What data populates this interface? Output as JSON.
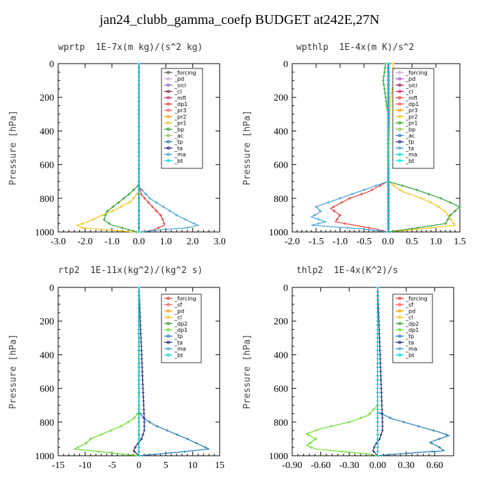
{
  "title": "jan24_clubb_gamma_coefp  BUDGET at242E,27N",
  "chart_data": [
    {
      "type": "line",
      "title": "wprtp  1E-7x(m kg)/(s^2 kg)",
      "ylabel": "Pressure [hPa]",
      "xlim": [
        -3.0,
        3.0
      ],
      "ylim": [
        0,
        1000
      ],
      "y_inverted": true,
      "xticks": [
        "-3.0",
        "-2.0",
        "-1.0",
        "0.0",
        "1.0",
        "2.0",
        "3.0"
      ],
      "xtick_values": [
        -3,
        -2,
        -1,
        0,
        1,
        2,
        3
      ],
      "yticks": [
        "0",
        "200",
        "400",
        "600",
        "800",
        "1000"
      ],
      "legend_position": "top-right",
      "series": [
        {
          "name": "_forcing",
          "color": "#555555",
          "y": [
            0,
            1000
          ],
          "x": [
            0,
            0
          ]
        },
        {
          "name": "_pd",
          "color": "#c9a0dc",
          "y": [
            0,
            1000
          ],
          "x": [
            0,
            0
          ]
        },
        {
          "name": "_sicl",
          "color": "#9b59b6",
          "y": [
            0,
            1000
          ],
          "x": [
            0,
            0
          ]
        },
        {
          "name": "_cl",
          "color": "#8e1b4a",
          "y": [
            0,
            1000
          ],
          "x": [
            0,
            0
          ]
        },
        {
          "name": "_mfl",
          "color": "#d81b60",
          "y": [
            0,
            1000
          ],
          "x": [
            0,
            0
          ]
        },
        {
          "name": "_dp1",
          "color": "#e53935",
          "y": [
            0,
            720,
            780,
            850,
            900,
            930,
            960,
            990,
            1000
          ],
          "x": [
            0,
            0,
            0.1,
            0.5,
            0.8,
            0.9,
            0.95,
            0.5,
            0.1
          ]
        },
        {
          "name": "_pr3",
          "color": "#ff5252",
          "y": [
            0,
            1000
          ],
          "x": [
            0,
            0
          ]
        },
        {
          "name": "_pr2",
          "color": "#ff9800",
          "y": [
            0,
            1000
          ],
          "x": [
            0,
            0
          ]
        },
        {
          "name": "_pr1",
          "color": "#f4c20d",
          "y": [
            0,
            760,
            820,
            870,
            910,
            940,
            960,
            975,
            990,
            1000
          ],
          "x": [
            0,
            0,
            -0.3,
            -0.9,
            -1.5,
            -1.9,
            -2.3,
            -2.1,
            -1.0,
            -0.2
          ]
        },
        {
          "name": "_bp",
          "color": "#2e9e2e",
          "y": [
            0,
            720,
            780,
            830,
            880,
            930,
            960,
            980,
            1000
          ],
          "x": [
            0,
            0,
            -0.4,
            -0.8,
            -1.2,
            -1.3,
            -1.0,
            -0.5,
            -0.1
          ]
        },
        {
          "name": "_ac",
          "color": "#8bc34a",
          "y": [
            0,
            1000
          ],
          "x": [
            0,
            0
          ]
        },
        {
          "name": "_tp",
          "color": "#1f77b4",
          "y": [
            0,
            1000
          ],
          "x": [
            0,
            0
          ]
        },
        {
          "name": "_ta",
          "color": "#1a237e",
          "y": [
            0,
            1000
          ],
          "x": [
            0,
            0
          ]
        },
        {
          "name": "_ma",
          "color": "#3f9fd8",
          "y": [
            0,
            730,
            800,
            850,
            900,
            940,
            960,
            975,
            990,
            1000
          ],
          "x": [
            0,
            0,
            0.4,
            0.9,
            1.4,
            1.9,
            2.2,
            1.8,
            0.6,
            0.1
          ]
        },
        {
          "name": "_bt",
          "color": "#00d8d8",
          "y": [
            0,
            1000
          ],
          "x": [
            0,
            0
          ]
        }
      ]
    },
    {
      "type": "line",
      "title": "wpthlp  1E-4x(m K)/s^2",
      "ylabel": "Pressure [hPa]",
      "xlim": [
        -2.0,
        1.5
      ],
      "ylim": [
        0,
        1000
      ],
      "y_inverted": true,
      "xticks": [
        "-2.0",
        "-1.5",
        "-1.0",
        "-0.5",
        "0.0",
        "0.5",
        "1.0",
        "1.5"
      ],
      "xtick_values": [
        -2.0,
        -1.5,
        -1.0,
        -0.5,
        0.0,
        0.5,
        1.0,
        1.5
      ],
      "yticks": [
        "0",
        "200",
        "400",
        "600",
        "800",
        "1000"
      ],
      "legend_position": "top-right",
      "series": [
        {
          "name": "_forcing",
          "color": "#c9a0dc",
          "y": [
            0,
            1000
          ],
          "x": [
            0,
            0
          ]
        },
        {
          "name": "_pd",
          "color": "#9b59b6",
          "y": [
            0,
            1000
          ],
          "x": [
            0.02,
            0.02
          ]
        },
        {
          "name": "_sicl",
          "color": "#8e1b4a",
          "y": [
            0,
            1000
          ],
          "x": [
            0,
            0
          ]
        },
        {
          "name": "_cl",
          "color": "#d81b60",
          "y": [
            0,
            1000
          ],
          "x": [
            0,
            0
          ]
        },
        {
          "name": "_mfl",
          "color": "#e53935",
          "y": [
            0,
            700,
            760,
            800,
            830,
            860,
            900,
            940,
            980,
            1000
          ],
          "x": [
            0,
            0,
            -0.4,
            -0.8,
            -1.0,
            -1.2,
            -1.0,
            -1.1,
            -0.3,
            0
          ]
        },
        {
          "name": "_dp1",
          "color": "#ff5252",
          "y": [
            0,
            1000
          ],
          "x": [
            0,
            0
          ]
        },
        {
          "name": "_pr3",
          "color": "#ff9800",
          "y": [
            0,
            1000
          ],
          "x": [
            0,
            0
          ]
        },
        {
          "name": "_pr2",
          "color": "#f4c20d",
          "y": [
            0,
            80,
            200,
            700,
            760,
            800,
            840,
            880,
            920,
            960,
            990,
            1000
          ],
          "x": [
            0.1,
            0.15,
            0.05,
            0,
            0.3,
            0.7,
            1.0,
            1.2,
            1.3,
            1.4,
            0.4,
            0
          ]
        },
        {
          "name": "_pr1",
          "color": "#2e9e2e",
          "y": [
            0,
            100,
            300,
            700,
            750,
            800,
            850,
            900,
            950,
            980,
            1000
          ],
          "x": [
            -0.05,
            -0.1,
            0,
            0,
            0.6,
            1.1,
            1.5,
            1.3,
            1.2,
            0.5,
            0
          ]
        },
        {
          "name": "_bp",
          "color": "#8bc34a",
          "y": [
            0,
            1000
          ],
          "x": [
            0,
            0
          ]
        },
        {
          "name": "_ac",
          "color": "#1f77b4",
          "y": [
            0,
            1000
          ],
          "x": [
            0,
            0
          ]
        },
        {
          "name": "_tp",
          "color": "#1a237e",
          "y": [
            0,
            1000
          ],
          "x": [
            0,
            0
          ]
        },
        {
          "name": "_ta",
          "color": "#3f9fd8",
          "y": [
            0,
            700,
            760,
            820,
            850,
            880,
            910,
            940,
            960,
            980,
            1000
          ],
          "x": [
            0,
            0,
            -0.6,
            -1.2,
            -1.5,
            -1.4,
            -1.6,
            -1.3,
            -1.6,
            -0.6,
            0
          ]
        },
        {
          "name": "_ma",
          "color": "#00d8d8",
          "y": [
            0,
            1000
          ],
          "x": [
            0,
            0
          ]
        },
        {
          "name": "_bt",
          "color": "#00e5e5",
          "y": [
            0,
            1000
          ],
          "x": [
            0,
            0
          ]
        }
      ]
    },
    {
      "type": "line",
      "title": "rtp2  1E-11x(kg^2)/(kg^2 s)",
      "ylabel": "Pressure [hPa]",
      "xlim": [
        -15,
        15
      ],
      "ylim": [
        0,
        1000
      ],
      "y_inverted": true,
      "xticks": [
        "-15",
        "-10",
        "-5",
        "0",
        "5",
        "10",
        "15"
      ],
      "xtick_values": [
        -15,
        -10,
        -5,
        0,
        5,
        10,
        15
      ],
      "yticks": [
        "0",
        "200",
        "400",
        "600",
        "800",
        "1000"
      ],
      "legend_position": "top-right",
      "series": [
        {
          "name": "_forcing",
          "color": "#e53935",
          "y": [
            0,
            1000
          ],
          "x": [
            0,
            0
          ]
        },
        {
          "name": "_sf",
          "color": "#ff5252",
          "y": [
            0,
            1000
          ],
          "x": [
            0,
            0
          ]
        },
        {
          "name": "_pd",
          "color": "#ff9800",
          "y": [
            0,
            1000
          ],
          "x": [
            0,
            0
          ]
        },
        {
          "name": "_cl",
          "color": "#f4c20d",
          "y": [
            0,
            1000
          ],
          "x": [
            0,
            0
          ]
        },
        {
          "name": "_dp2",
          "color": "#2e9e2e",
          "y": [
            0,
            1000
          ],
          "x": [
            0,
            0
          ]
        },
        {
          "name": "_dp1",
          "color": "#66dd22",
          "y": [
            0,
            740,
            780,
            820,
            860,
            900,
            930,
            960,
            980,
            1000
          ],
          "x": [
            0,
            0,
            -1,
            -3,
            -6,
            -9,
            -10,
            -12,
            -6,
            0
          ]
        },
        {
          "name": "_tp",
          "color": "#1f77b4",
          "y": [
            0,
            740,
            780,
            820,
            860,
            900,
            930,
            960,
            980,
            1000
          ],
          "x": [
            0,
            0,
            1,
            3,
            6,
            9,
            11,
            13,
            7,
            0
          ]
        },
        {
          "name": "_ta",
          "color": "#1a237e",
          "y": [
            0,
            800,
            850,
            900,
            940,
            970,
            1000
          ],
          "x": [
            0,
            1,
            1,
            0.5,
            -0.5,
            -1,
            0
          ]
        },
        {
          "name": "_ma",
          "color": "#3f9fd8",
          "y": [
            0,
            1000
          ],
          "x": [
            0,
            0
          ]
        },
        {
          "name": "_bt",
          "color": "#00d8d8",
          "y": [
            0,
            1000
          ],
          "x": [
            0,
            0
          ]
        }
      ]
    },
    {
      "type": "line",
      "title": "thlp2  1E-4x(K^2)/s",
      "ylabel": "Pressure [hPa]",
      "xlim": [
        -0.9,
        0.8
      ],
      "ylim": [
        0,
        1000
      ],
      "y_inverted": true,
      "xticks": [
        "-0.90",
        "-0.60",
        "-0.30",
        "0.00",
        "0.30",
        "0.60"
      ],
      "xtick_values": [
        -0.9,
        -0.6,
        -0.3,
        0.0,
        0.3,
        0.6
      ],
      "yticks": [
        "0",
        "200",
        "400",
        "600",
        "800",
        "1000"
      ],
      "legend_position": "top-right",
      "series": [
        {
          "name": "_forcing",
          "color": "#e53935",
          "y": [
            0,
            1000
          ],
          "x": [
            0,
            0
          ]
        },
        {
          "name": "_sf",
          "color": "#ff5252",
          "y": [
            0,
            1000
          ],
          "x": [
            0,
            0
          ]
        },
        {
          "name": "_pd",
          "color": "#ff9800",
          "y": [
            0,
            1000
          ],
          "x": [
            0,
            0
          ]
        },
        {
          "name": "_cl",
          "color": "#f4c20d",
          "y": [
            0,
            1000
          ],
          "x": [
            0,
            0
          ]
        },
        {
          "name": "_dp2",
          "color": "#2e9e2e",
          "y": [
            0,
            1000
          ],
          "x": [
            0,
            0
          ]
        },
        {
          "name": "_dp1",
          "color": "#66dd22",
          "y": [
            0,
            700,
            760,
            800,
            840,
            870,
            900,
            940,
            960,
            990,
            1000
          ],
          "x": [
            0,
            0,
            -0.1,
            -0.3,
            -0.6,
            -0.75,
            -0.65,
            -0.75,
            -0.65,
            -0.1,
            0
          ]
        },
        {
          "name": "_tp",
          "color": "#1f77b4",
          "y": [
            0,
            740,
            780,
            820,
            860,
            880,
            920,
            950,
            970,
            990,
            1000
          ],
          "x": [
            0,
            0,
            0.15,
            0.4,
            0.65,
            0.75,
            0.55,
            0.65,
            0.7,
            0.2,
            0
          ]
        },
        {
          "name": "_ta",
          "color": "#1a237e",
          "y": [
            0,
            800,
            850,
            900,
            940,
            970,
            1000
          ],
          "x": [
            0,
            0.05,
            0.05,
            0.02,
            -0.03,
            -0.05,
            0
          ]
        },
        {
          "name": "_ma",
          "color": "#3f9fd8",
          "y": [
            0,
            1000
          ],
          "x": [
            0,
            0
          ]
        },
        {
          "name": "_bt",
          "color": "#00d8d8",
          "y": [
            0,
            1000
          ],
          "x": [
            0,
            0
          ]
        }
      ]
    }
  ]
}
